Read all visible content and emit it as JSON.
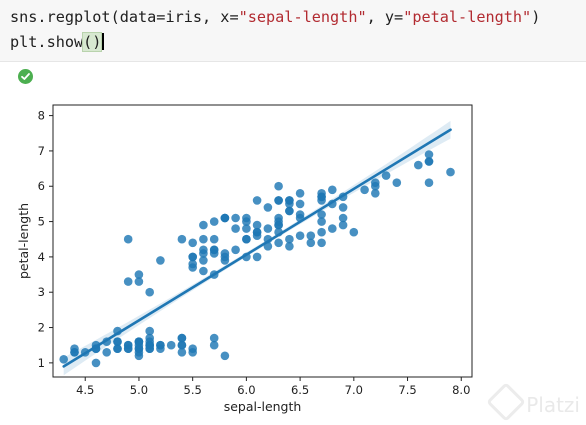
{
  "code": {
    "line1": {
      "prefix": "sns.regplot(data=iris, x=",
      "arg_x": "\"sepal-length\"",
      "sep": ", y=",
      "arg_y": "\"petal-length\"",
      "suffix": ")"
    },
    "line2": {
      "prefix": "plt.show",
      "parens": "()"
    }
  },
  "status": {
    "icon": "check-circle-icon",
    "color": "#4caf50"
  },
  "watermark": "Platzi",
  "chart_data": {
    "type": "scatter",
    "title": "",
    "xlabel": "sepal-length",
    "ylabel": "petal-length",
    "xlim": [
      4.2,
      8.1
    ],
    "ylim": [
      0.6,
      8.3
    ],
    "x_ticks": [
      "4.5",
      "5.0",
      "5.5",
      "6.0",
      "6.5",
      "7.0",
      "7.5",
      "8.0"
    ],
    "y_ticks": [
      "1",
      "2",
      "3",
      "4",
      "5",
      "6",
      "7",
      "8"
    ],
    "grid": false,
    "regression": {
      "x": [
        4.3,
        7.9
      ],
      "y": [
        0.9,
        7.6
      ],
      "ci_halfwidth_ends": 0.25
    },
    "point_color": "#1f77b4",
    "x": [
      5.1,
      4.9,
      4.7,
      4.6,
      5.0,
      5.4,
      4.6,
      5.0,
      4.4,
      4.9,
      5.4,
      4.8,
      4.8,
      4.3,
      5.8,
      5.7,
      5.4,
      5.1,
      5.7,
      5.1,
      5.4,
      5.1,
      4.6,
      5.1,
      4.8,
      5.0,
      5.0,
      5.2,
      5.2,
      4.7,
      4.8,
      5.4,
      5.2,
      5.5,
      4.9,
      5.0,
      5.5,
      4.9,
      4.4,
      5.1,
      5.0,
      4.5,
      4.4,
      5.0,
      5.1,
      4.8,
      5.1,
      4.6,
      5.3,
      5.0,
      7.0,
      6.4,
      6.9,
      5.5,
      6.5,
      5.7,
      6.3,
      4.9,
      6.6,
      5.2,
      5.0,
      5.9,
      6.0,
      6.1,
      5.6,
      6.7,
      5.6,
      5.8,
      6.2,
      5.6,
      5.9,
      6.1,
      6.3,
      6.1,
      6.4,
      6.6,
      6.8,
      6.7,
      6.0,
      5.7,
      5.5,
      5.5,
      5.8,
      6.0,
      5.4,
      6.0,
      6.7,
      6.3,
      5.6,
      5.5,
      5.5,
      6.1,
      5.8,
      5.0,
      5.6,
      5.7,
      5.7,
      6.2,
      5.1,
      5.7,
      6.3,
      5.8,
      7.1,
      6.3,
      6.5,
      7.6,
      4.9,
      7.3,
      6.7,
      7.2,
      6.5,
      6.4,
      6.8,
      5.7,
      5.8,
      6.4,
      6.5,
      7.7,
      7.7,
      6.0,
      6.9,
      5.6,
      7.7,
      6.3,
      6.7,
      7.2,
      6.2,
      6.1,
      6.4,
      7.2,
      7.4,
      7.9,
      6.4,
      6.3,
      6.1,
      7.7,
      6.3,
      6.4,
      6.0,
      6.9,
      6.7,
      6.9,
      5.8,
      6.8,
      6.7,
      6.7,
      6.3,
      6.5,
      6.2,
      5.9
    ],
    "y": [
      1.4,
      1.4,
      1.3,
      1.5,
      1.4,
      1.7,
      1.4,
      1.5,
      1.4,
      1.5,
      1.5,
      1.6,
      1.4,
      1.1,
      1.2,
      1.5,
      1.3,
      1.4,
      1.7,
      1.5,
      1.7,
      1.5,
      1.0,
      1.7,
      1.9,
      1.6,
      1.6,
      1.5,
      1.4,
      1.6,
      1.6,
      1.5,
      1.5,
      1.4,
      1.5,
      1.2,
      1.3,
      1.4,
      1.3,
      1.5,
      1.3,
      1.3,
      1.3,
      1.6,
      1.9,
      1.4,
      1.6,
      1.4,
      1.5,
      1.4,
      4.7,
      4.5,
      4.9,
      4.0,
      4.6,
      4.5,
      4.7,
      3.3,
      4.6,
      3.9,
      3.5,
      4.2,
      4.0,
      4.7,
      3.6,
      4.4,
      4.5,
      4.1,
      4.5,
      3.9,
      4.8,
      4.0,
      4.9,
      4.7,
      4.3,
      4.4,
      4.8,
      5.0,
      4.5,
      3.5,
      3.8,
      3.7,
      3.9,
      5.1,
      4.5,
      4.5,
      4.7,
      4.4,
      4.1,
      4.0,
      4.4,
      4.6,
      4.0,
      3.3,
      4.2,
      4.2,
      4.2,
      4.3,
      3.0,
      4.1,
      6.0,
      5.1,
      5.9,
      5.6,
      5.8,
      6.6,
      4.5,
      6.3,
      5.8,
      6.1,
      5.1,
      5.3,
      5.5,
      5.0,
      5.1,
      5.3,
      5.5,
      6.7,
      6.9,
      5.0,
      5.7,
      4.9,
      6.7,
      4.9,
      5.7,
      6.0,
      4.8,
      4.9,
      5.6,
      5.8,
      6.1,
      6.4,
      5.6,
      5.1,
      5.6,
      6.1,
      5.6,
      5.5,
      4.8,
      5.4,
      5.6,
      5.1,
      5.1,
      5.9,
      5.7,
      5.2,
      5.0,
      5.2,
      5.4,
      5.1
    ]
  }
}
